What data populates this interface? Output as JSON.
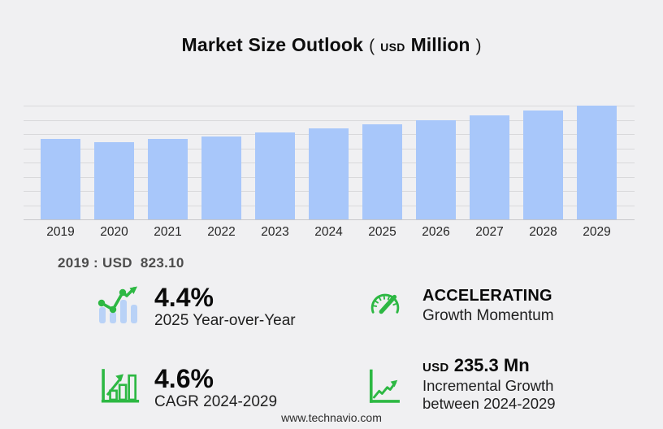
{
  "title": {
    "main": "Market Size Outlook",
    "paren_open": "(",
    "unit_currency": "USD",
    "unit_scale": "Million",
    "paren_close": ")"
  },
  "chart_data": {
    "type": "bar",
    "title": "Market Size Outlook (USD Million)",
    "categories": [
      "2019",
      "2020",
      "2021",
      "2022",
      "2023",
      "2024",
      "2025",
      "2026",
      "2027",
      "2028",
      "2029"
    ],
    "values": [
      823.1,
      791.2,
      826.5,
      852.8,
      892.1,
      932.7,
      973.7,
      1017.8,
      1064.2,
      1114.1,
      1168.0
    ],
    "xlabel": "",
    "ylabel": "USD Million",
    "ylim": [
      0,
      1168
    ],
    "grid": true,
    "gridline_count": 9,
    "legend": "none"
  },
  "annotation": {
    "base_year_value": "2019 : USD  823.10"
  },
  "stats": [
    {
      "icon": "trend-bars-icon",
      "value": "4.4%",
      "label": "2025 Year-over-Year"
    },
    {
      "icon": "gauge-icon",
      "value": "ACCELERATING",
      "label": "Growth Momentum"
    },
    {
      "icon": "growth-chart-icon",
      "value": "4.6%",
      "label": "CAGR 2024-2029"
    },
    {
      "icon": "incremental-growth-icon",
      "value_prefix": "USD",
      "value": "235.3 Mn",
      "label_line1": "Incremental Growth",
      "label_line2": "between 2024-2029"
    }
  ],
  "footer": {
    "url": "www.technavio.com"
  },
  "colors": {
    "background": "#f0f0f2",
    "bar": "#a8c7fa",
    "icon_bar": "#b9d2f7",
    "green": "#2db843",
    "gridline": "#d9d9db",
    "axis_line": "#c7c7cb"
  }
}
